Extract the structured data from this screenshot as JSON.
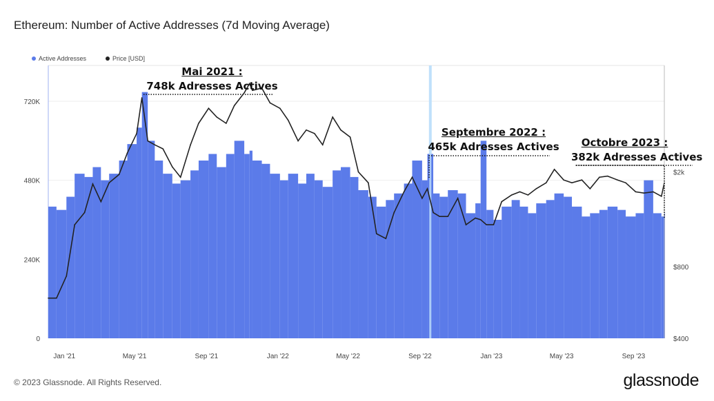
{
  "title": "Ethereum: Number of Active Addresses (7d Moving Average)",
  "legend": [
    {
      "label": "Active Addresses",
      "color": "#5b7be9"
    },
    {
      "label": "Price [USD]",
      "color": "#222222"
    }
  ],
  "annotations": [
    {
      "line1": "Mai 2021 :",
      "line2": "748k Adresses Actives"
    },
    {
      "line1": "Septembre 2022 :",
      "line2": "465k Adresses Actives"
    },
    {
      "line1": "Octobre 2023 :",
      "line2": "382k Adresses Actives"
    }
  ],
  "footer": "© 2023 Glassnode. All Rights Reserved.",
  "logo": "glassnode",
  "chart_data": {
    "type": "bar+line",
    "title": "Ethereum: Number of Active Addresses (7d Moving Average)",
    "x_ticks": [
      "Jan '21",
      "May '21",
      "Sep '21",
      "Jan '22",
      "May '22",
      "Sep '22",
      "Jan '23",
      "May '23",
      "Sep '23"
    ],
    "x_tick_dates": [
      "2021-01-01",
      "2021-05-01",
      "2021-09-01",
      "2022-01-01",
      "2022-05-01",
      "2022-09-01",
      "2023-01-01",
      "2023-05-01",
      "2023-09-01"
    ],
    "xlim": [
      "2020-12-01",
      "2023-10-20"
    ],
    "y_left": {
      "ticks": [
        "0",
        "240K",
        "480K",
        "720K"
      ],
      "tick_values": [
        0,
        240000,
        480000,
        720000
      ],
      "ylim": [
        0,
        720000
      ]
    },
    "y_right": {
      "scale": "log",
      "ticks": [
        "$400",
        "$800",
        "$2k"
      ],
      "tick_values": [
        400,
        800,
        2000
      ]
    },
    "grid": true,
    "legend_position": "top-left",
    "highlight_date": "2022-09-15",
    "dates": [
      "2020-12-01",
      "2020-12-15",
      "2021-01-01",
      "2021-01-15",
      "2021-02-01",
      "2021-02-15",
      "2021-03-01",
      "2021-03-15",
      "2021-04-01",
      "2021-04-15",
      "2021-05-01",
      "2021-05-10",
      "2021-05-20",
      "2021-06-01",
      "2021-06-15",
      "2021-07-01",
      "2021-07-15",
      "2021-08-01",
      "2021-08-15",
      "2021-09-01",
      "2021-09-15",
      "2021-10-01",
      "2021-10-15",
      "2021-11-01",
      "2021-11-10",
      "2021-11-15",
      "2021-12-01",
      "2021-12-15",
      "2022-01-01",
      "2022-01-15",
      "2022-02-01",
      "2022-02-15",
      "2022-03-01",
      "2022-03-15",
      "2022-04-01",
      "2022-04-15",
      "2022-05-01",
      "2022-05-15",
      "2022-06-01",
      "2022-06-15",
      "2022-07-01",
      "2022-07-15",
      "2022-08-01",
      "2022-08-15",
      "2022-09-01",
      "2022-09-10",
      "2022-09-20",
      "2022-10-01",
      "2022-10-15",
      "2022-11-01",
      "2022-11-15",
      "2022-12-01",
      "2022-12-10",
      "2022-12-20",
      "2023-01-01",
      "2023-01-15",
      "2023-02-01",
      "2023-02-15",
      "2023-03-01",
      "2023-03-15",
      "2023-04-01",
      "2023-04-15",
      "2023-05-01",
      "2023-05-15",
      "2023-06-01",
      "2023-06-15",
      "2023-07-01",
      "2023-07-15",
      "2023-08-01",
      "2023-08-15",
      "2023-09-01",
      "2023-09-15",
      "2023-10-01",
      "2023-10-15",
      "2023-10-20"
    ],
    "series": [
      {
        "name": "Active Addresses",
        "axis": "left",
        "type": "bar",
        "color": "#5b7be9",
        "values": [
          400000,
          390000,
          430000,
          500000,
          490000,
          520000,
          480000,
          500000,
          540000,
          590000,
          640000,
          748000,
          600000,
          540000,
          500000,
          470000,
          480000,
          510000,
          540000,
          560000,
          520000,
          560000,
          600000,
          560000,
          570000,
          540000,
          530000,
          500000,
          480000,
          500000,
          470000,
          500000,
          480000,
          460000,
          510000,
          520000,
          490000,
          450000,
          430000,
          400000,
          420000,
          440000,
          470000,
          540000,
          480000,
          560000,
          440000,
          430000,
          450000,
          440000,
          380000,
          410000,
          600000,
          390000,
          360000,
          400000,
          420000,
          400000,
          380000,
          410000,
          420000,
          440000,
          430000,
          400000,
          370000,
          380000,
          390000,
          400000,
          390000,
          370000,
          380000,
          480000,
          380000,
          370000,
          382000
        ]
      },
      {
        "name": "Price [USD]",
        "axis": "right",
        "type": "line",
        "color": "#222222",
        "values": [
          590,
          590,
          730,
          1200,
          1350,
          1780,
          1500,
          1800,
          1950,
          2400,
          2900,
          4100,
          2700,
          2600,
          2500,
          2100,
          1900,
          2600,
          3200,
          3700,
          3400,
          3200,
          3800,
          4300,
          4700,
          4400,
          4500,
          3900,
          3700,
          3300,
          2700,
          3000,
          2900,
          2600,
          3400,
          3000,
          2800,
          2000,
          1800,
          1100,
          1050,
          1350,
          1650,
          1900,
          1550,
          1700,
          1350,
          1300,
          1300,
          1550,
          1200,
          1280,
          1260,
          1200,
          1200,
          1500,
          1600,
          1650,
          1600,
          1700,
          1800,
          2050,
          1850,
          1800,
          1850,
          1700,
          1900,
          1920,
          1850,
          1800,
          1650,
          1630,
          1650,
          1580,
          1800
        ]
      }
    ]
  }
}
